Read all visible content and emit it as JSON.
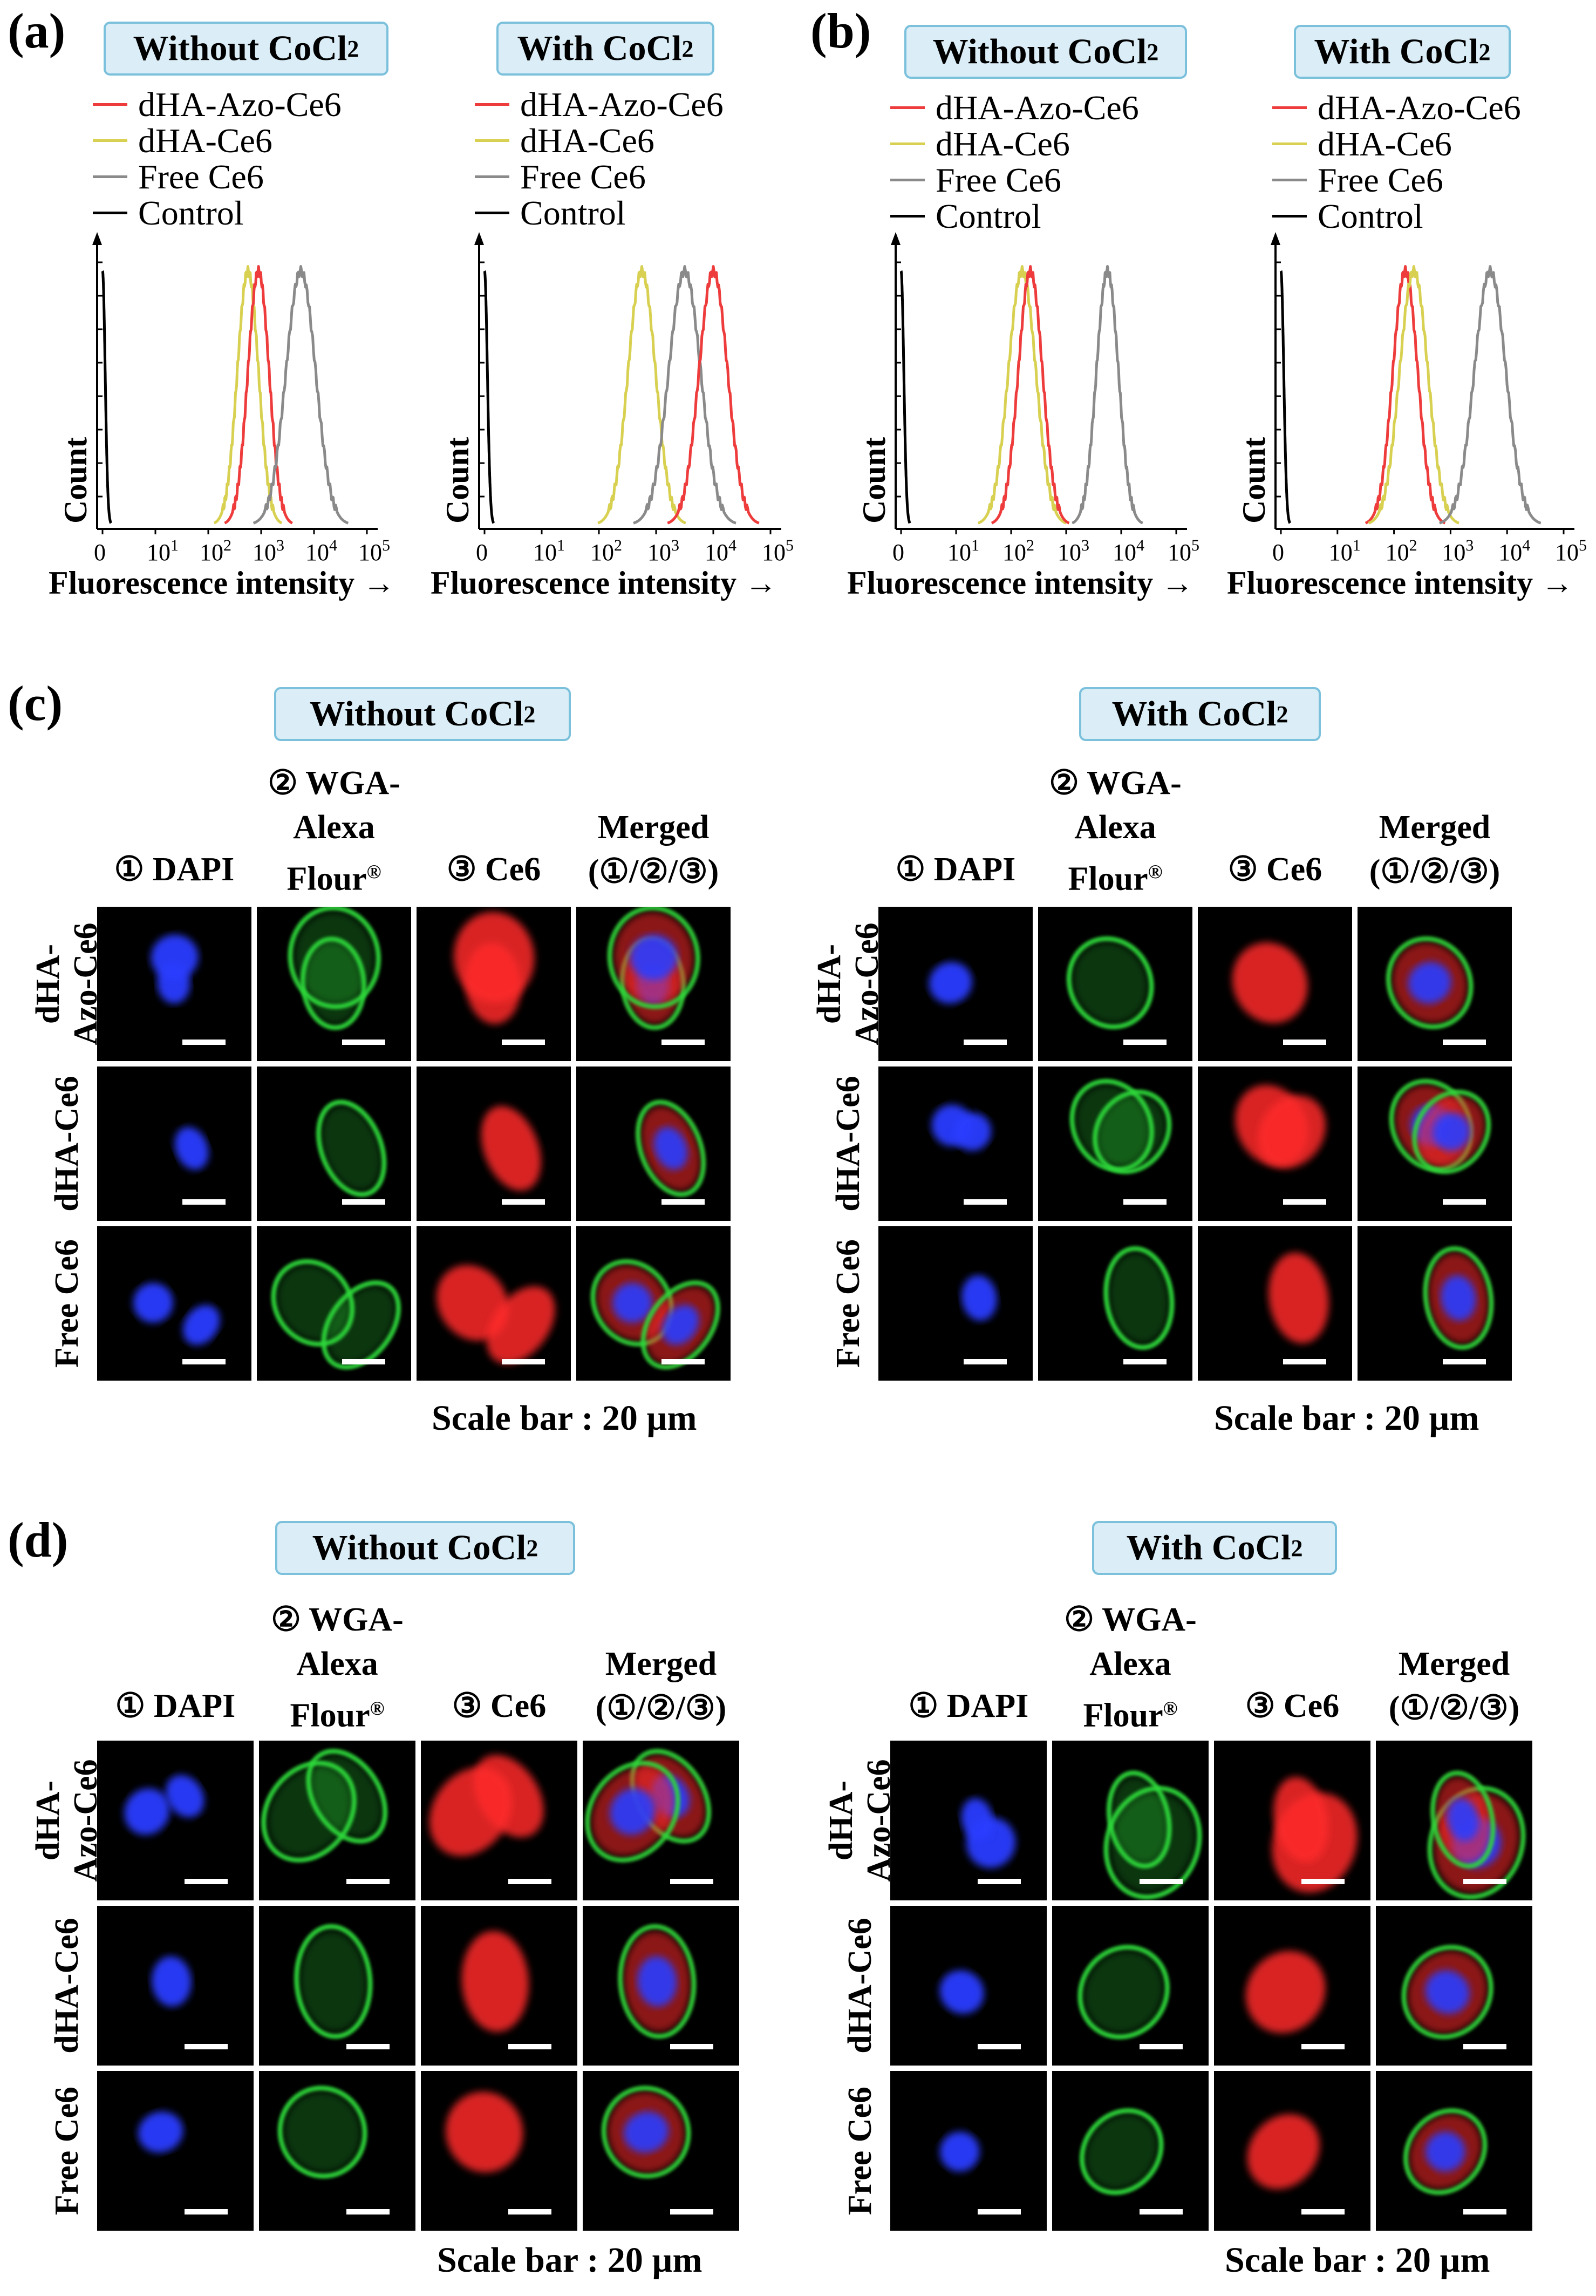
{
  "panels": {
    "a": {
      "label": "(a)"
    },
    "b": {
      "label": "(b)"
    },
    "c": {
      "label": "(c)"
    },
    "d": {
      "label": "(d)"
    }
  },
  "conditions": {
    "without_prefix": "Without CoCl",
    "with_prefix": "With CoCl",
    "subscript": "2"
  },
  "legend": [
    {
      "label": "dHA-Azo-Ce6",
      "color": "#ee3b3b"
    },
    {
      "label": "dHA-Ce6",
      "color": "#d8d050"
    },
    {
      "label": "Free Ce6",
      "color": "#8a8a8a"
    },
    {
      "label": "Control",
      "color": "#000000"
    }
  ],
  "histogram_axis": {
    "ylabel": "Count",
    "xlabel": "Fluorescence intensity",
    "arrow": "→",
    "ticks": [
      "0",
      "10",
      "10",
      "10",
      "10",
      "10"
    ],
    "tick_exponents": [
      "",
      "1",
      "2",
      "3",
      "4",
      "5"
    ]
  },
  "chart_data": [
    {
      "type": "line",
      "panel": "a",
      "condition": "Without CoCl2",
      "xscale": "biexponential",
      "xlim": [
        0,
        100000
      ],
      "xlabel": "Fluorescence intensity",
      "ylabel": "Count",
      "series": [
        {
          "name": "Control",
          "peak_log10": 0.0,
          "width": 0.05,
          "color": "#000000"
        },
        {
          "name": "dHA-Ce6",
          "peak_log10": 2.75,
          "width": 0.2,
          "color": "#d8d050"
        },
        {
          "name": "dHA-Azo-Ce6",
          "peak_log10": 2.95,
          "width": 0.2,
          "color": "#ee3b3b"
        },
        {
          "name": "Free Ce6",
          "peak_log10": 3.75,
          "width": 0.28,
          "color": "#8a8a8a"
        }
      ]
    },
    {
      "type": "line",
      "panel": "a",
      "condition": "With CoCl2",
      "xscale": "biexponential",
      "xlim": [
        0,
        100000
      ],
      "xlabel": "Fluorescence intensity",
      "ylabel": "Count",
      "series": [
        {
          "name": "Control",
          "peak_log10": 0.0,
          "width": 0.05,
          "color": "#000000"
        },
        {
          "name": "dHA-Ce6",
          "peak_log10": 2.75,
          "width": 0.24,
          "color": "#d8d050"
        },
        {
          "name": "Free Ce6",
          "peak_log10": 3.5,
          "width": 0.28,
          "color": "#8a8a8a"
        },
        {
          "name": "dHA-Azo-Ce6",
          "peak_log10": 4.0,
          "width": 0.25,
          "color": "#ee3b3b"
        }
      ]
    },
    {
      "type": "line",
      "panel": "b",
      "condition": "Without CoCl2",
      "xscale": "biexponential",
      "xlim": [
        0,
        100000
      ],
      "xlabel": "Fluorescence intensity",
      "ylabel": "Count",
      "series": [
        {
          "name": "Control",
          "peak_log10": 0.0,
          "width": 0.05,
          "color": "#000000"
        },
        {
          "name": "dHA-Ce6",
          "peak_log10": 2.2,
          "width": 0.25,
          "color": "#d8d050"
        },
        {
          "name": "dHA-Azo-Ce6",
          "peak_log10": 2.35,
          "width": 0.22,
          "color": "#ee3b3b"
        },
        {
          "name": "Free Ce6",
          "peak_log10": 3.75,
          "width": 0.2,
          "color": "#8a8a8a"
        }
      ]
    },
    {
      "type": "line",
      "panel": "b",
      "condition": "With CoCl2",
      "xscale": "biexponential",
      "xlim": [
        0,
        100000
      ],
      "xlabel": "Fluorescence intensity",
      "ylabel": "Count",
      "series": [
        {
          "name": "Control",
          "peak_log10": 0.0,
          "width": 0.05,
          "color": "#000000"
        },
        {
          "name": "dHA-Azo-Ce6",
          "peak_log10": 2.2,
          "width": 0.22,
          "color": "#ee3b3b"
        },
        {
          "name": "dHA-Ce6",
          "peak_log10": 2.35,
          "width": 0.25,
          "color": "#d8d050"
        },
        {
          "name": "Free Ce6",
          "peak_log10": 3.7,
          "width": 0.28,
          "color": "#8a8a8a"
        }
      ]
    }
  ],
  "microscopy": {
    "col_headers": {
      "dapi": "① DAPI",
      "wga_line1": "② WGA-",
      "wga_line2": "Alexa",
      "wga_line3": "Flour",
      "wga_sup": "®",
      "ce6": "③ Ce6",
      "merged_line1": "Merged",
      "merged_line2": "(①/②/③)"
    },
    "rows": {
      "azo_line1": "dHA-",
      "azo_line2": "Azo-Ce6",
      "dha": "dHA-Ce6",
      "free": "Free Ce6"
    },
    "scale_text": "Scale bar : 20 µm",
    "channel_colors": [
      "#2a3cff",
      "#2fd83a",
      "#ff2a2a"
    ]
  }
}
